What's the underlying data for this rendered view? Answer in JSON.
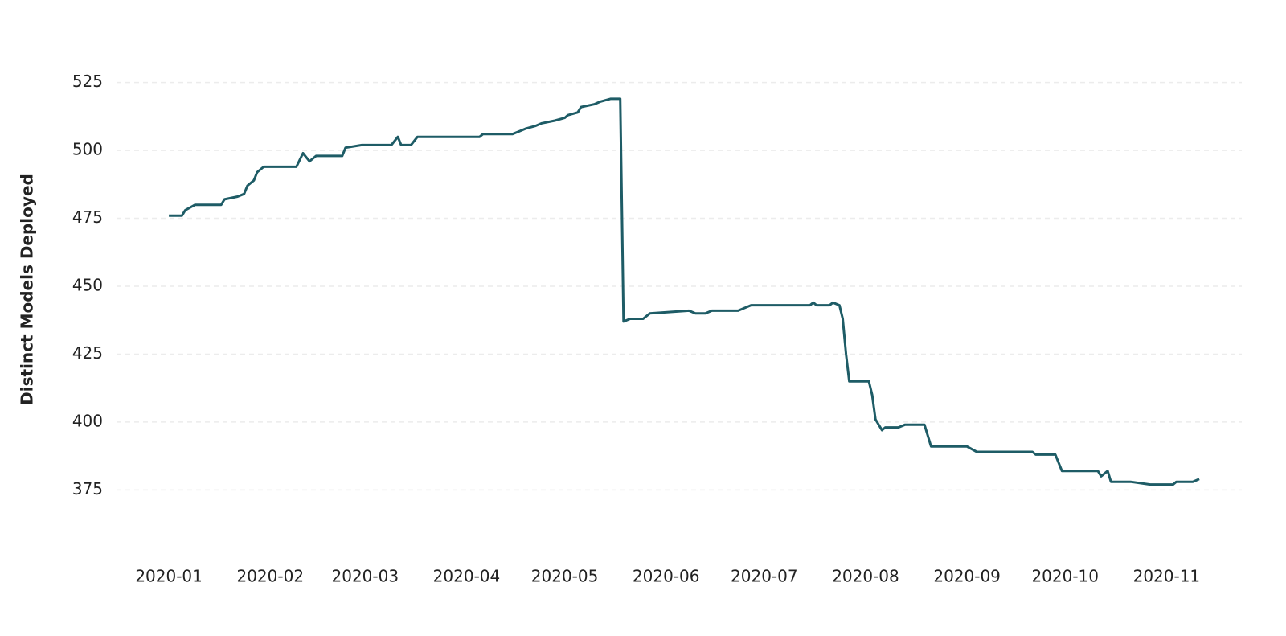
{
  "chart_data": {
    "type": "line",
    "ylabel": "Distinct Models Deployed",
    "x": [
      "2020-01-01",
      "2020-01-05",
      "2020-01-06",
      "2020-01-09",
      "2020-01-17",
      "2020-01-18",
      "2020-01-22",
      "2020-01-24",
      "2020-01-25",
      "2020-01-27",
      "2020-01-28",
      "2020-01-30",
      "2020-02-09",
      "2020-02-11",
      "2020-02-13",
      "2020-02-15",
      "2020-02-23",
      "2020-02-24",
      "2020-02-29",
      "2020-03-09",
      "2020-03-11",
      "2020-03-12",
      "2020-03-15",
      "2020-03-17",
      "2020-04-05",
      "2020-04-06",
      "2020-04-15",
      "2020-04-17",
      "2020-04-19",
      "2020-04-22",
      "2020-04-24",
      "2020-04-28",
      "2020-05-01",
      "2020-05-02",
      "2020-05-05",
      "2020-05-06",
      "2020-05-10",
      "2020-05-12",
      "2020-05-15",
      "2020-05-18",
      "2020-05-19",
      "2020-05-21",
      "2020-05-25",
      "2020-05-27",
      "2020-06-08",
      "2020-06-10",
      "2020-06-13",
      "2020-06-15",
      "2020-06-23",
      "2020-06-27",
      "2020-07-15",
      "2020-07-16",
      "2020-07-17",
      "2020-07-21",
      "2020-07-22",
      "2020-07-24",
      "2020-07-25",
      "2020-07-26",
      "2020-07-27",
      "2020-08-02",
      "2020-08-03",
      "2020-08-04",
      "2020-08-06",
      "2020-08-07",
      "2020-08-11",
      "2020-08-13",
      "2020-08-19",
      "2020-08-21",
      "2020-09-01",
      "2020-09-04",
      "2020-09-21",
      "2020-09-22",
      "2020-09-28",
      "2020-09-30",
      "2020-10-11",
      "2020-10-12",
      "2020-10-14",
      "2020-10-15",
      "2020-10-21",
      "2020-10-27",
      "2020-11-03",
      "2020-11-04",
      "2020-11-09",
      "2020-11-11"
    ],
    "values": [
      476,
      476,
      478,
      480,
      480,
      482,
      483,
      484,
      487,
      489,
      492,
      494,
      494,
      499,
      496,
      498,
      498,
      501,
      502,
      502,
      505,
      502,
      502,
      505,
      505,
      506,
      506,
      507,
      508,
      509,
      510,
      511,
      512,
      513,
      514,
      516,
      517,
      518,
      519,
      519,
      437,
      438,
      438,
      440,
      441,
      440,
      440,
      441,
      441,
      443,
      443,
      444,
      443,
      443,
      444,
      443,
      438,
      425,
      415,
      415,
      410,
      401,
      397,
      398,
      398,
      399,
      399,
      391,
      391,
      389,
      389,
      388,
      388,
      382,
      382,
      380,
      382,
      378,
      378,
      377,
      377,
      378,
      378,
      379
    ],
    "color": "#1e5c66",
    "xlim": [
      "2019-12-16",
      "2020-11-24"
    ],
    "xticks": [
      {
        "value": "2020-01-01",
        "label": "2020-01"
      },
      {
        "value": "2020-02-01",
        "label": "2020-02"
      },
      {
        "value": "2020-03-01",
        "label": "2020-03"
      },
      {
        "value": "2020-04-01",
        "label": "2020-04"
      },
      {
        "value": "2020-05-01",
        "label": "2020-05"
      },
      {
        "value": "2020-06-01",
        "label": "2020-06"
      },
      {
        "value": "2020-07-01",
        "label": "2020-07"
      },
      {
        "value": "2020-08-01",
        "label": "2020-08"
      },
      {
        "value": "2020-09-01",
        "label": "2020-09"
      },
      {
        "value": "2020-10-01",
        "label": "2020-10"
      },
      {
        "value": "2020-11-01",
        "label": "2020-11"
      }
    ],
    "ylim": [
      360,
      540
    ],
    "yticks": [
      375,
      400,
      425,
      450,
      475,
      500,
      525
    ],
    "grid": true
  }
}
